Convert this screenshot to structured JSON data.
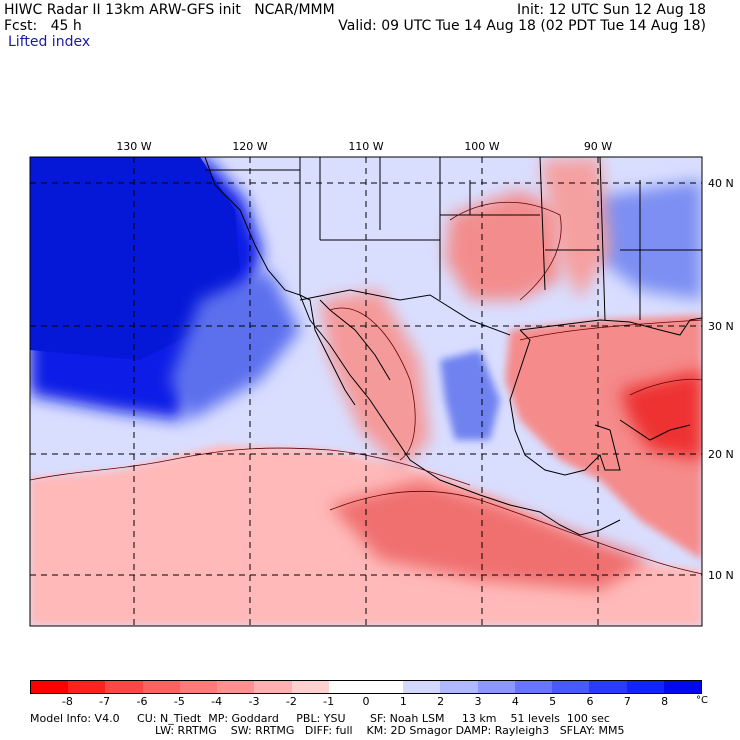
{
  "header": {
    "title": "HIWC Radar II 13km ARW-GFS init",
    "org": "NCAR/MMM",
    "fcst_label": "Fcst:",
    "fcst_value": "45 h",
    "init": "Init: 12 UTC Sun 12 Aug 18",
    "valid": "Valid: 09 UTC Tue 14 Aug 18 (02 PDT Tue 14 Aug 18)"
  },
  "field_name": "Lifted index",
  "map": {
    "lon_labels": [
      "130 W",
      "120 W",
      "110 W",
      "100 W",
      "90 W"
    ],
    "lat_labels": [
      "40 N",
      "30 N",
      "20 N",
      "10 N"
    ],
    "colors": {
      "deep_stable": "#0a1ee6",
      "stable": "#6f84f2",
      "neutral": "#e9ecff",
      "unstable": "#f08080",
      "strong_unstable": "#ee2a2a",
      "land_line": "#000000"
    }
  },
  "colorbar": {
    "ticks": [
      "-8",
      "-7",
      "-6",
      "-5",
      "-4",
      "-3",
      "-2",
      "-1",
      "0",
      "1",
      "2",
      "3",
      "4",
      "5",
      "6",
      "7",
      "8"
    ],
    "unit": "°C",
    "colors": [
      "#ff0000",
      "#ff2020",
      "#ff4545",
      "#ff6060",
      "#ff7a7a",
      "#ff9090",
      "#ffb0b0",
      "#ffd0d0",
      "#ffffff",
      "#ffffff",
      "#d4d8ff",
      "#b0b8ff",
      "#8c98ff",
      "#6876ff",
      "#4a58ff",
      "#2a3aff",
      "#1024ff",
      "#0008ee"
    ]
  },
  "footer": {
    "line1": "Model Info: V4.0     CU: N_Tiedt  MP: Goddard     PBL: YSU       SF: Noah LSM     13 km    51 levels  100 sec",
    "line2": "LW: RRTMG    SW: RRTMG   DIFF: full    KM: 2D Smagor DAMP: Rayleigh3   SFLAY: MM5"
  }
}
